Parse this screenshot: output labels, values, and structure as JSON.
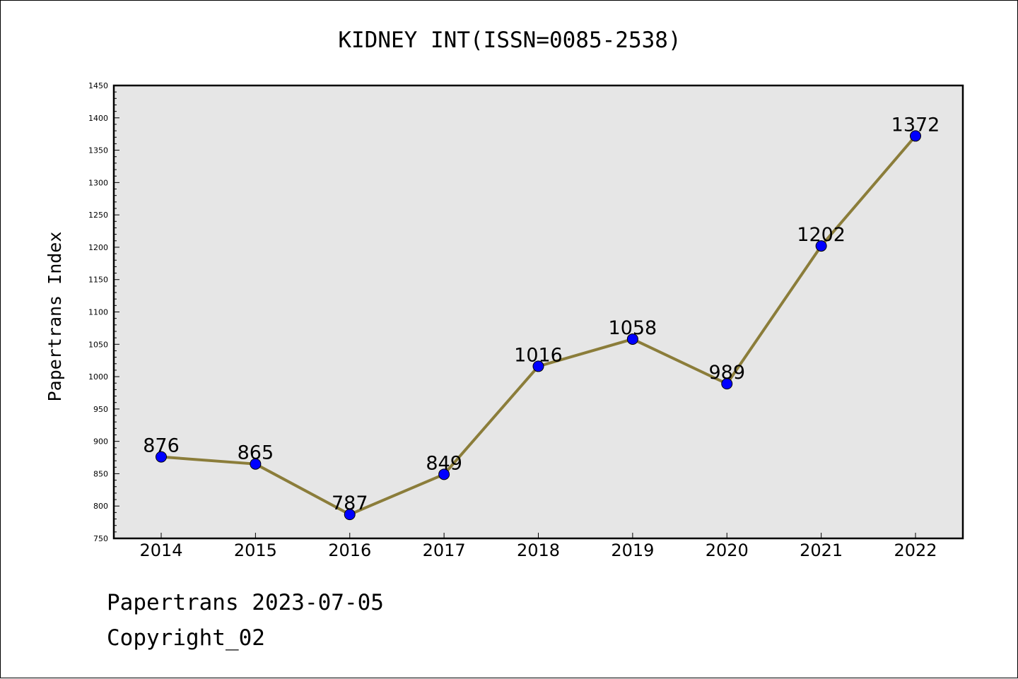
{
  "chart_data": {
    "type": "line",
    "title": "KIDNEY INT(ISSN=0085-2538)",
    "xlabel": "",
    "ylabel": "Papertrans Index",
    "categories": [
      "2014",
      "2015",
      "2016",
      "2017",
      "2018",
      "2019",
      "2020",
      "2021",
      "2022"
    ],
    "values": [
      876,
      865,
      787,
      849,
      1016,
      1058,
      989,
      1202,
      1372
    ],
    "data_labels": [
      "876",
      "865",
      "787",
      "849",
      "1016",
      "1058",
      "989",
      "1202",
      "1372"
    ],
    "ylim": [
      750,
      1450
    ],
    "y_ticks": [
      "750",
      "800",
      "850",
      "900",
      "950",
      "1000",
      "1050",
      "1100",
      "1150",
      "1200",
      "1250",
      "1300",
      "1350",
      "1400",
      "1450"
    ],
    "y_minor_step": 10,
    "grid": false,
    "colors": {
      "line": "#8B7D3A",
      "marker": "#0000FF",
      "plot_background": "#E6E6E6"
    }
  },
  "footer": {
    "line1": "Papertrans 2023-07-05",
    "line2": "Copyright_02"
  }
}
